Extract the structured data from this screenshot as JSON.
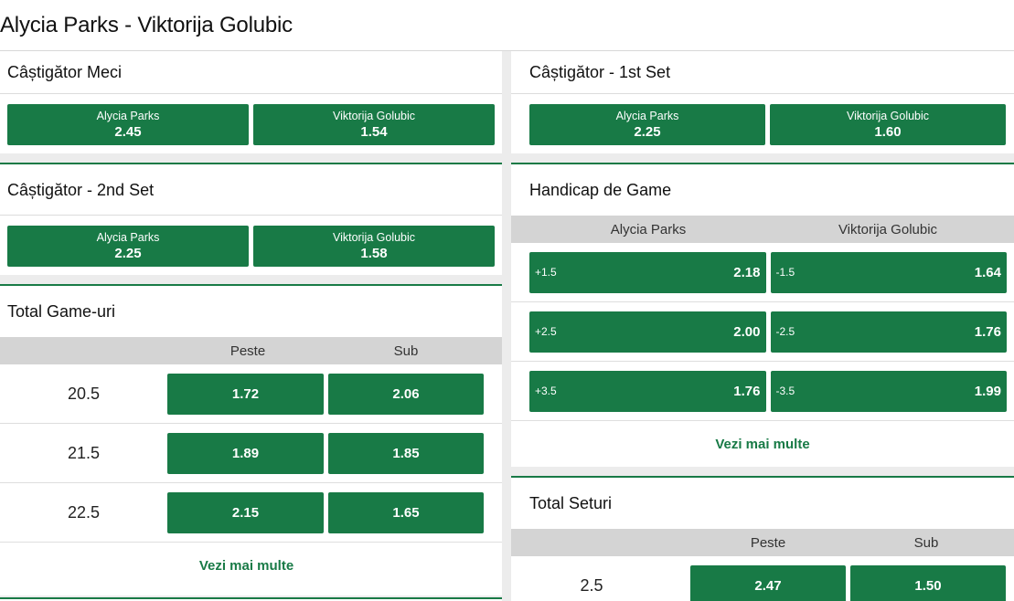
{
  "page": {
    "title": "Alycia Parks - Viktorija Golubic"
  },
  "markets": {
    "match_winner": {
      "title": "Câștigător Meci",
      "options": [
        {
          "name": "Alycia Parks",
          "odd": "2.45"
        },
        {
          "name": "Viktorija Golubic",
          "odd": "1.54"
        }
      ]
    },
    "first_set": {
      "title": "Câștigător - 1st Set",
      "options": [
        {
          "name": "Alycia Parks",
          "odd": "2.25"
        },
        {
          "name": "Viktorija Golubic",
          "odd": "1.60"
        }
      ]
    },
    "second_set": {
      "title": "Câștigător - 2nd Set",
      "options": [
        {
          "name": "Alycia Parks",
          "odd": "2.25"
        },
        {
          "name": "Viktorija Golubic",
          "odd": "1.58"
        }
      ]
    },
    "game_handicap": {
      "title": "Handicap de Game",
      "col1": "Alycia Parks",
      "col2": "Viktorija Golubic",
      "rows": [
        {
          "l1": "+1.5",
          "o1": "2.18",
          "l2": "-1.5",
          "o2": "1.64"
        },
        {
          "l1": "+2.5",
          "o1": "2.00",
          "l2": "-2.5",
          "o2": "1.76"
        },
        {
          "l1": "+3.5",
          "o1": "1.76",
          "l2": "-3.5",
          "o2": "1.99"
        }
      ],
      "more": "Vezi mai multe"
    },
    "total_games": {
      "title": "Total Game-uri",
      "over_label": "Peste",
      "under_label": "Sub",
      "rows": [
        {
          "line": "20.5",
          "over": "1.72",
          "under": "2.06"
        },
        {
          "line": "21.5",
          "over": "1.89",
          "under": "1.85"
        },
        {
          "line": "22.5",
          "over": "2.15",
          "under": "1.65"
        }
      ],
      "more": "Vezi mai multe"
    },
    "total_sets": {
      "title": "Total Seturi",
      "over_label": "Peste",
      "under_label": "Sub",
      "rows": [
        {
          "line": "2.5",
          "over": "2.47",
          "under": "1.50"
        }
      ]
    }
  }
}
